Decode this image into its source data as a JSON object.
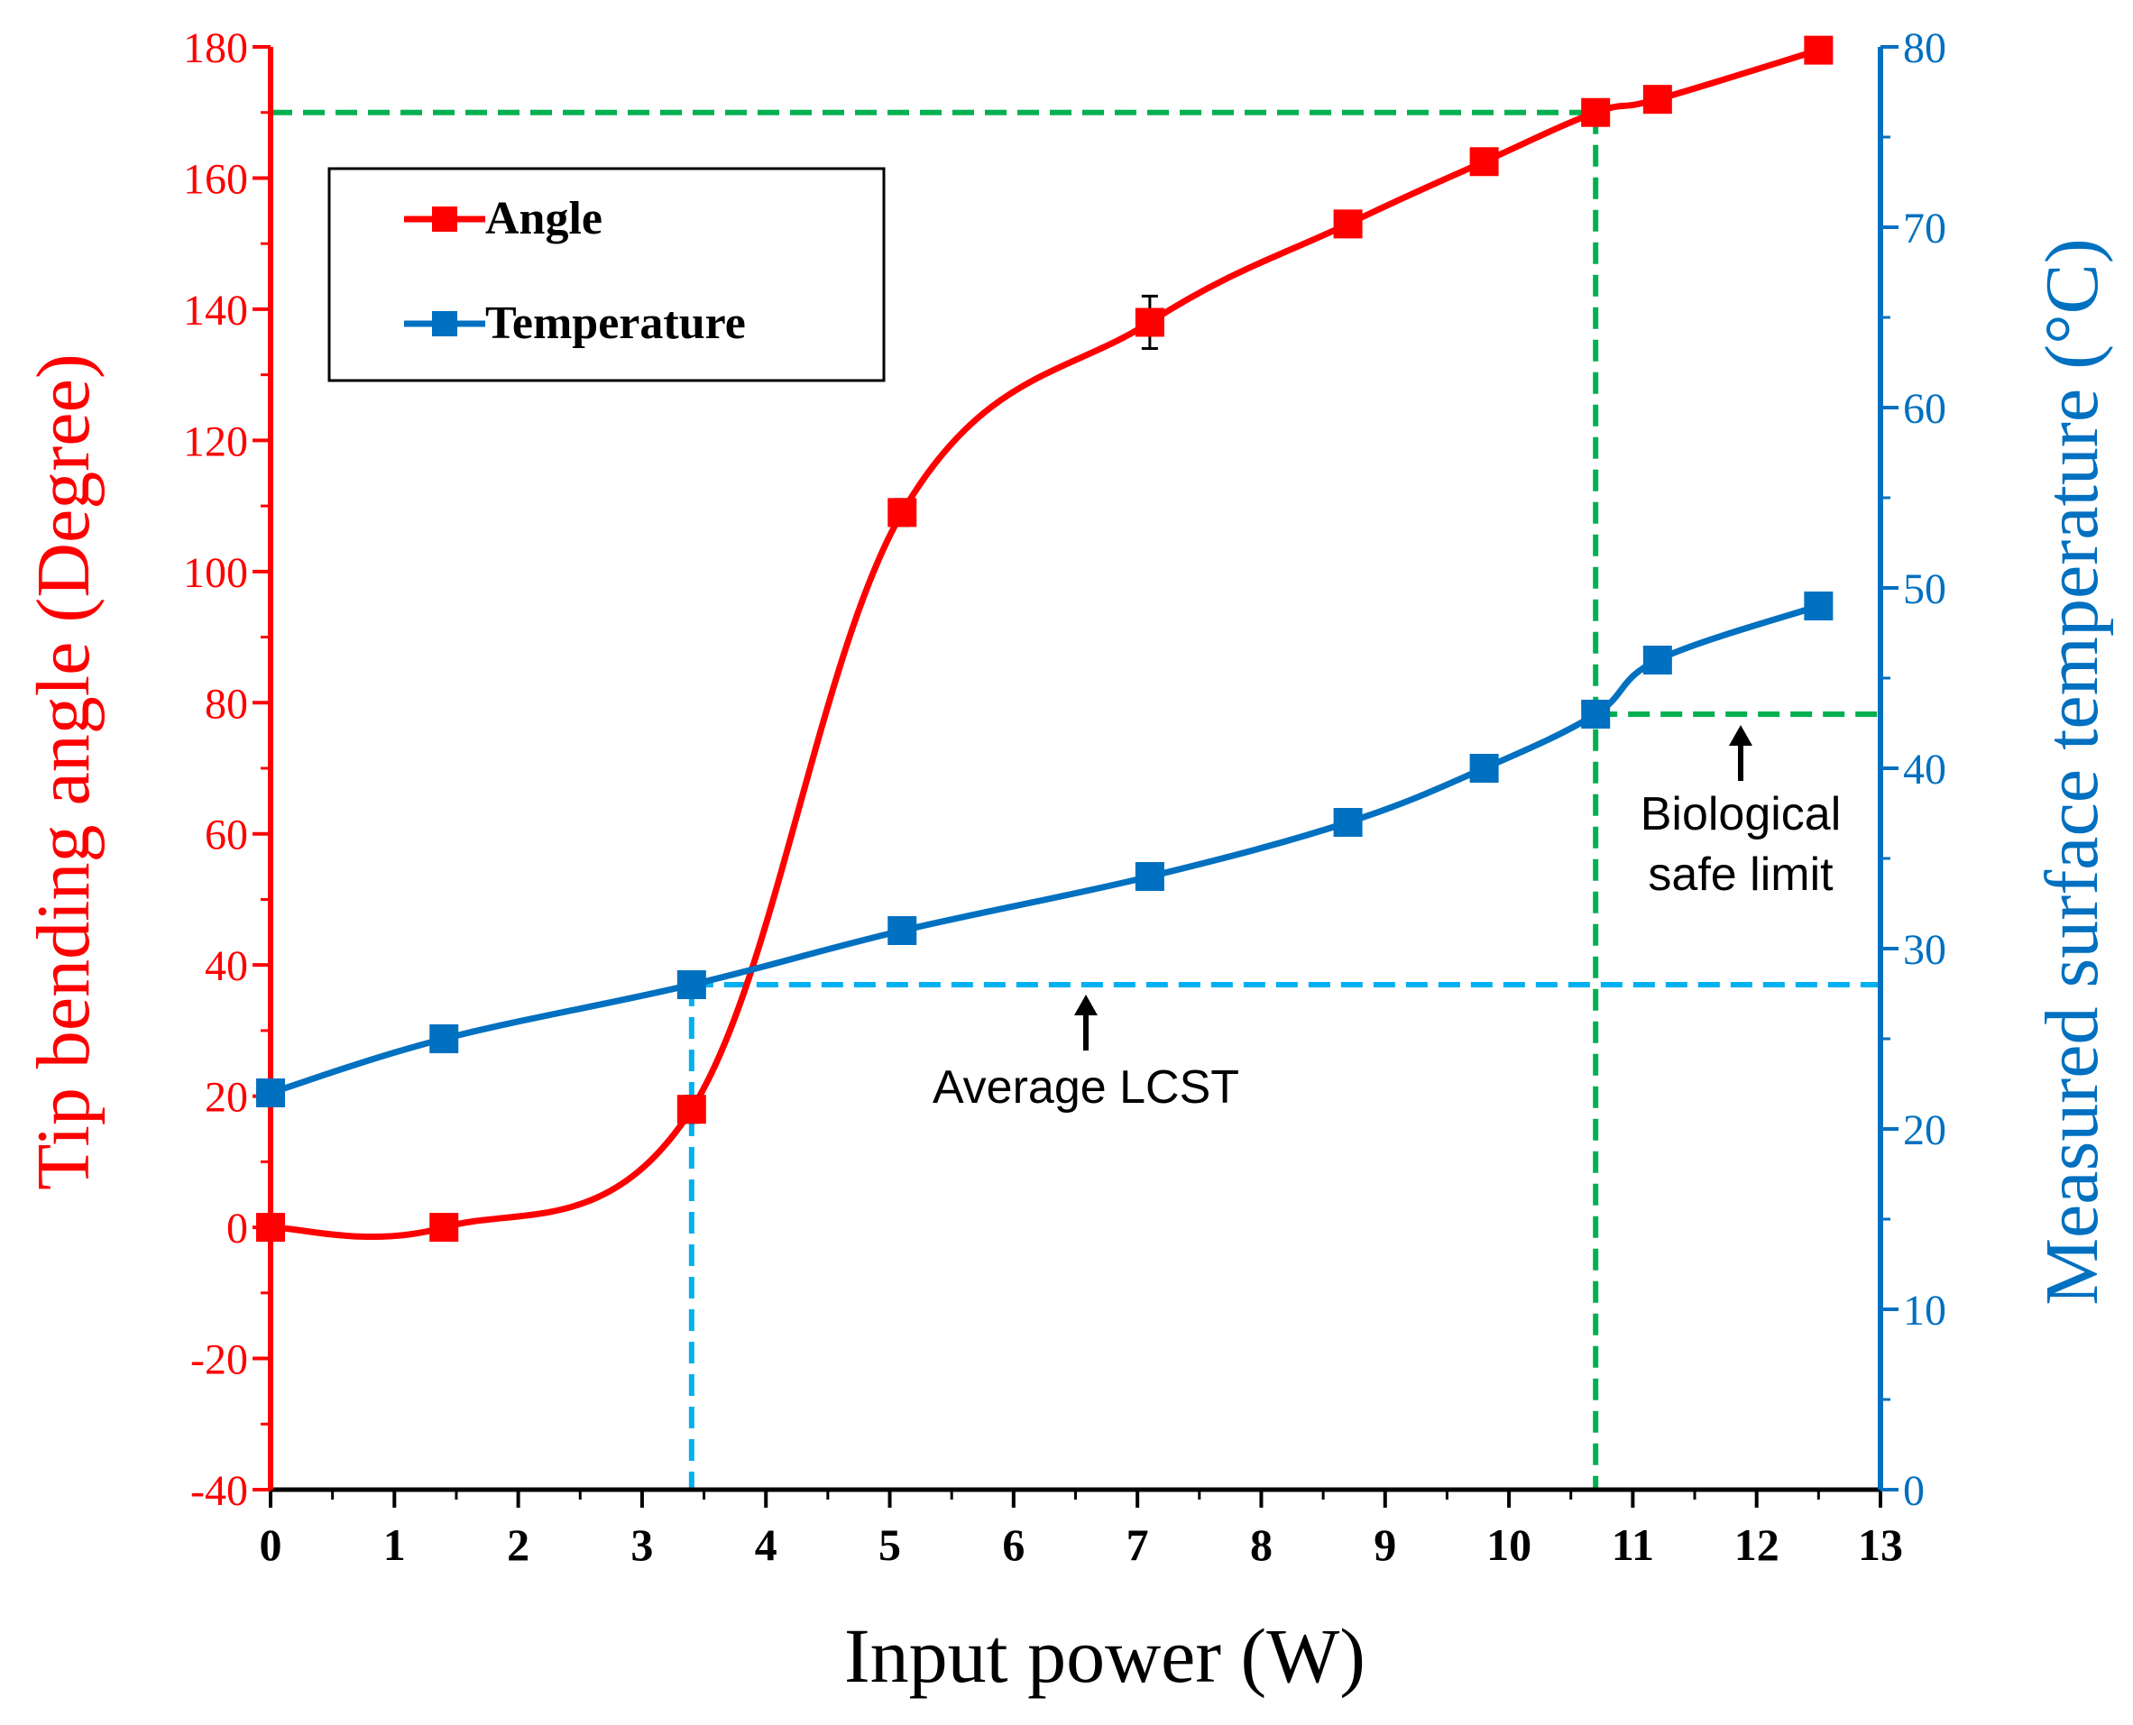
{
  "colors": {
    "angle": "#ff0000",
    "temperature": "#0070c0",
    "lcst_line": "#00b0f0",
    "safe_limit_line": "#00b050",
    "text": "#000000"
  },
  "chart_data": {
    "type": "line",
    "xlabel": "Input power (W)",
    "ylabel_left": "Tip bending angle (Degree)",
    "ylabel_right": "Measured surface temperature (°C)",
    "xlim": [
      0,
      13
    ],
    "ylim_left": [
      -40,
      180
    ],
    "ylim_right": [
      0,
      80
    ],
    "x_ticks": [
      "0",
      "1",
      "2",
      "3",
      "4",
      "5",
      "6",
      "7",
      "8",
      "9",
      "10",
      "11",
      "12",
      "13"
    ],
    "y_left_ticks": [
      "-40",
      "-20",
      "0",
      "20",
      "40",
      "60",
      "80",
      "100",
      "120",
      "140",
      "160",
      "180"
    ],
    "y_right_ticks": [
      "0",
      "10",
      "20",
      "30",
      "40",
      "50",
      "60",
      "70",
      "80"
    ],
    "grid": false,
    "legend": {
      "position": "top-left"
    },
    "series": [
      {
        "name": "Angle",
        "axis": "left",
        "x": [
          0,
          1.4,
          3.4,
          5.1,
          7.1,
          8.7,
          9.8,
          10.7,
          11.2,
          12.5
        ],
        "values": [
          0,
          0,
          18,
          109,
          138,
          153,
          162.5,
          170,
          172,
          179.5
        ],
        "error": [
          0,
          0,
          2,
          2,
          4,
          0,
          0,
          0,
          0,
          0
        ]
      },
      {
        "name": "Temperature",
        "axis": "right",
        "x": [
          0,
          1.4,
          3.4,
          5.1,
          7.1,
          8.7,
          9.8,
          10.7,
          11.2,
          12.5
        ],
        "values": [
          22,
          25,
          28,
          31,
          34,
          37,
          40,
          43,
          46,
          49
        ]
      }
    ],
    "reference_lines": [
      {
        "name": "average-lcst",
        "axis": "right",
        "y": 28,
        "x_from": 3.4,
        "x_to": 13,
        "drop_x": 3.4
      },
      {
        "name": "safe-limit-angle",
        "axis": "left",
        "y": 170,
        "x_from": 0,
        "x_to": 10.7,
        "drop_x": 10.7
      },
      {
        "name": "safe-limit-temp",
        "axis": "right",
        "y": 43,
        "x_from": 10.7,
        "x_to": 13
      }
    ],
    "annotations": {
      "lcst": [
        "Average LCST"
      ],
      "safe": [
        "Biological",
        "safe limit"
      ]
    }
  }
}
